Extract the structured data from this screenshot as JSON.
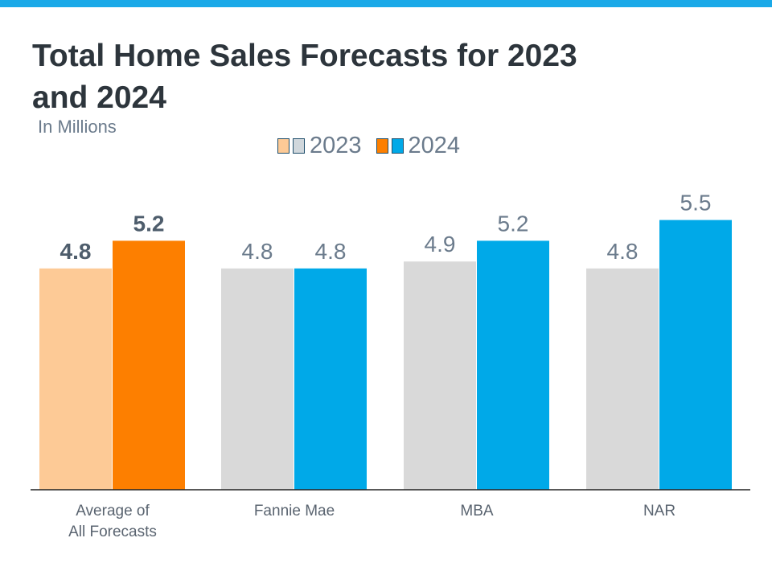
{
  "colors": {
    "top_bar": "#1aa9e8",
    "avg_2023": "#fdca96",
    "avg_2024": "#fd7f00",
    "other_2023": "#d9d9d9",
    "other_2024": "#00a9e8"
  },
  "chart_data": {
    "type": "bar",
    "title": "Total Home Sales Forecasts for 2023 and 2024",
    "subtitle": "In Millions",
    "categories": [
      "Average of\nAll Forecasts",
      "Fannie Mae",
      "MBA",
      "NAR"
    ],
    "series": [
      {
        "name": "2023",
        "values": [
          4.8,
          4.8,
          4.9,
          4.8
        ]
      },
      {
        "name": "2024",
        "values": [
          5.2,
          4.8,
          5.2,
          5.5
        ]
      }
    ],
    "data_labels": true,
    "grid": false,
    "legend_position": "top"
  }
}
